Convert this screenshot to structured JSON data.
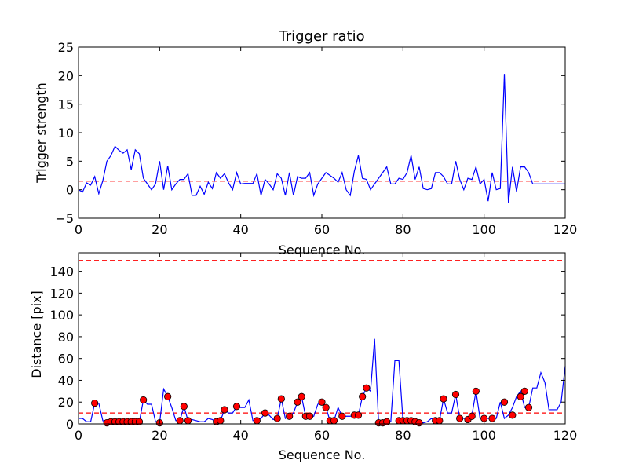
{
  "chart_data": [
    {
      "type": "line",
      "title": "Trigger ratio",
      "xlabel": "Sequence No.",
      "ylabel": "Trigger strength",
      "xlim": [
        0,
        120
      ],
      "ylim": [
        -5,
        25
      ],
      "xticks": [
        0,
        20,
        40,
        60,
        80,
        100,
        120
      ],
      "yticks": [
        -5,
        0,
        5,
        10,
        15,
        20,
        25
      ],
      "grid": false,
      "series": [
        {
          "color": "#0000ff",
          "x": [
            0,
            1,
            2,
            3,
            4,
            5,
            6,
            7,
            8,
            9,
            10,
            11,
            12,
            13,
            14,
            15,
            16,
            17,
            18,
            19,
            20,
            21,
            22,
            23,
            24,
            25,
            26,
            27,
            28,
            29,
            30,
            31,
            32,
            33,
            34,
            35,
            36,
            37,
            38,
            39,
            40,
            41,
            42,
            43,
            44,
            45,
            46,
            47,
            48,
            49,
            50,
            51,
            52,
            53,
            54,
            55,
            56,
            57,
            58,
            59,
            60,
            61,
            62,
            63,
            64,
            65,
            66,
            67,
            68,
            69,
            70,
            71,
            72,
            73,
            74,
            75,
            76,
            77,
            78,
            79,
            80,
            81,
            82,
            83,
            84,
            85,
            86,
            87,
            88,
            89,
            90,
            91,
            92,
            93,
            94,
            95,
            96,
            97,
            98,
            99,
            100,
            101,
            102,
            103,
            104,
            105,
            106,
            107,
            108,
            109,
            110,
            111,
            112,
            113,
            114,
            115,
            116,
            117,
            118,
            119,
            120
          ],
          "y": [
            0,
            -0.4,
            1.2,
            0.8,
            2.3,
            -0.7,
            1.6,
            5,
            6,
            7.6,
            6.9,
            6.4,
            7,
            3.5,
            7,
            6.3,
            2,
            1,
            0,
            1,
            5,
            0,
            4.2,
            0,
            1,
            1.8,
            1.8,
            2.8,
            -1,
            -1,
            0.6,
            -0.8,
            1.3,
            0.2,
            3,
            2,
            2.8,
            1.2,
            0,
            3,
            1,
            1.1,
            1.1,
            1.1,
            2.8,
            -1,
            1.8,
            1,
            0,
            2.8,
            2,
            -1,
            3,
            -1,
            2.3,
            2,
            2,
            3,
            -1,
            1,
            2,
            3,
            2.5,
            2,
            1.3,
            3,
            0,
            -1,
            3.2,
            6,
            2,
            1.8,
            0,
            1,
            2,
            3,
            4,
            1,
            1,
            2,
            1.8,
            3,
            6,
            1.8,
            4,
            0.2,
            0,
            0.2,
            3,
            3,
            2.3,
            1,
            1,
            5,
            1.8,
            0,
            2,
            1.8,
            4,
            1,
            1.8,
            -2,
            3,
            0,
            0.2,
            20.3,
            -2.3,
            4,
            -0.3,
            4,
            4,
            3,
            1,
            1,
            1,
            1,
            1,
            1,
            1,
            1,
            1
          ]
        }
      ],
      "threshold": {
        "value": 1.5,
        "color": "#ff0000",
        "style": "dashed"
      }
    },
    {
      "type": "line",
      "title": "",
      "xlabel": "Sequence No.",
      "ylabel": "Distance [pix]",
      "xlim": [
        0,
        120
      ],
      "ylim": [
        0,
        157
      ],
      "xticks": [
        0,
        20,
        40,
        60,
        80,
        100,
        120
      ],
      "yticks": [
        0,
        20,
        40,
        60,
        80,
        100,
        120,
        140
      ],
      "grid": false,
      "series": [
        {
          "color": "#0000ff",
          "x": [
            0,
            1,
            2,
            3,
            4,
            5,
            6,
            7,
            8,
            9,
            10,
            11,
            12,
            13,
            14,
            15,
            16,
            17,
            18,
            19,
            20,
            21,
            22,
            23,
            24,
            25,
            26,
            27,
            28,
            29,
            30,
            31,
            32,
            33,
            34,
            35,
            36,
            37,
            38,
            39,
            40,
            41,
            42,
            43,
            44,
            45,
            46,
            47,
            48,
            49,
            50,
            51,
            52,
            53,
            54,
            55,
            56,
            57,
            58,
            59,
            60,
            61,
            62,
            63,
            64,
            65,
            66,
            67,
            68,
            69,
            70,
            71,
            72,
            73,
            74,
            75,
            76,
            77,
            78,
            79,
            80,
            81,
            82,
            83,
            84,
            85,
            86,
            87,
            88,
            89,
            90,
            91,
            92,
            93,
            94,
            95,
            96,
            97,
            98,
            99,
            100,
            101,
            102,
            103,
            104,
            105,
            106,
            107,
            108,
            109,
            110,
            111,
            112,
            113,
            114,
            115,
            116,
            117,
            118,
            119,
            120
          ],
          "y": [
            5,
            5,
            2,
            2,
            19,
            19,
            3,
            1,
            2,
            2,
            2,
            2,
            2,
            2,
            2,
            2,
            22,
            18,
            18,
            2,
            1,
            32,
            25,
            15,
            3,
            3,
            16,
            3,
            4,
            3,
            2,
            2,
            5,
            4,
            2,
            3,
            13,
            10,
            10,
            16,
            15,
            15,
            22,
            3,
            3,
            5,
            10,
            8,
            4,
            5,
            23,
            5,
            7,
            10,
            20,
            25,
            7,
            7,
            7,
            18,
            20,
            15,
            3,
            3,
            15,
            7,
            7,
            7,
            8,
            8,
            25,
            33,
            30,
            78,
            1,
            1,
            1,
            2,
            58,
            58,
            3,
            3,
            3,
            3,
            2,
            1,
            2,
            5,
            3,
            3,
            23,
            10,
            10,
            27,
            5,
            5,
            5,
            8,
            30,
            5,
            5,
            5,
            5,
            5,
            20,
            5,
            8,
            15,
            25,
            30,
            15,
            15,
            33,
            33,
            47,
            38,
            13,
            13,
            13,
            20,
            53
          ],
          "markers": {
            "color": "#ff0000",
            "x": [
              4,
              7,
              8,
              9,
              10,
              11,
              12,
              13,
              14,
              15,
              16,
              20,
              22,
              25,
              26,
              27,
              34,
              35,
              36,
              39,
              44,
              46,
              49,
              50,
              52,
              54,
              55,
              56,
              57,
              60,
              61,
              62,
              63,
              65,
              68,
              69,
              70,
              71,
              74,
              75,
              76,
              79,
              80,
              81,
              82,
              83,
              84,
              88,
              89,
              90,
              93,
              94,
              96,
              97,
              98,
              100,
              102,
              105,
              107,
              109,
              110,
              111
            ],
            "y": [
              19,
              1,
              2,
              2,
              2,
              2,
              2,
              2,
              2,
              2,
              22,
              1,
              25,
              3,
              16,
              3,
              2,
              3,
              13,
              16,
              3,
              10,
              5,
              23,
              7,
              20,
              25,
              7,
              7,
              20,
              15,
              3,
              3,
              7,
              8,
              8,
              25,
              33,
              1,
              1,
              2,
              3,
              3,
              3,
              3,
              2,
              1,
              3,
              3,
              23,
              27,
              5,
              4,
              7,
              30,
              5,
              5,
              20,
              8,
              25,
              30,
              15
            ]
          }
        }
      ],
      "thresholds": [
        {
          "value": 150,
          "color": "#ff0000",
          "style": "dashed"
        },
        {
          "value": 10,
          "color": "#ff0000",
          "style": "dashed"
        }
      ]
    }
  ]
}
